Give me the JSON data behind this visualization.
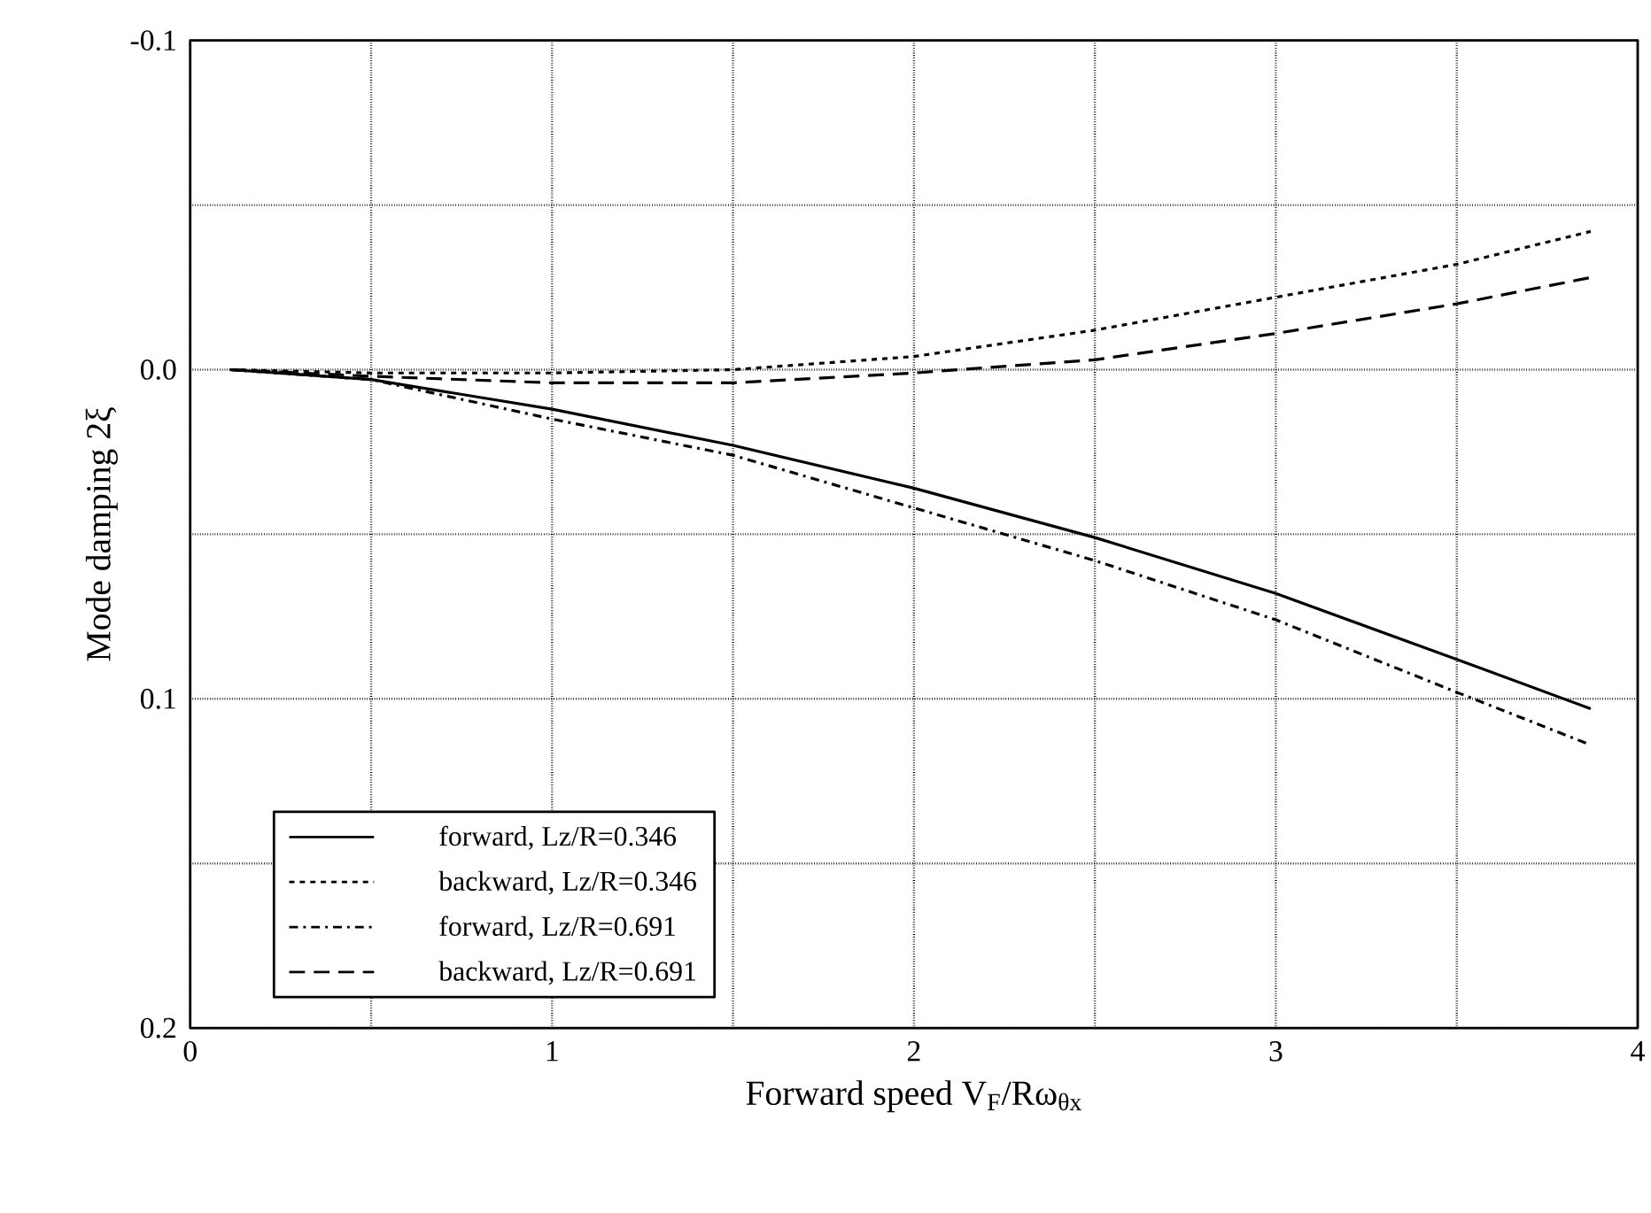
{
  "chart_data": {
    "type": "line",
    "xlabel": "Forward speed    V$_{F}$/Rω$_{θx}$",
    "ylabel": "Mode damping   2ξ",
    "x": [
      0.11,
      0.5,
      1,
      1.5,
      2,
      2.5,
      3,
      3.5,
      3.87
    ],
    "series": [
      {
        "name": "forward, Lz/R=0.346",
        "color": "#000000",
        "line_style": "solid",
        "values": [
          0,
          0.003,
          0.012,
          0.023,
          0.036,
          0.051,
          0.068,
          0.088,
          0.103
        ]
      },
      {
        "name": "backward, Lz/R=0.346",
        "color": "#000000",
        "line_style": "dotted",
        "values": [
          0,
          0.001,
          0.001,
          0,
          -0.004,
          -0.012,
          -0.022,
          -0.032,
          -0.042
        ]
      },
      {
        "name": "forward, Lz/R=0.691",
        "color": "#000000",
        "line_style": "dashdot",
        "values": [
          0,
          0.003,
          0.015,
          0.026,
          0.042,
          0.058,
          0.076,
          0.098,
          0.114
        ]
      },
      {
        "name": "backward, Lz/R=0.691",
        "color": "#000000",
        "line_style": "dashed",
        "values": [
          0,
          0.002,
          0.004,
          0.004,
          0.001,
          -0.003,
          -0.011,
          -0.02,
          -0.028
        ]
      }
    ],
    "xlim": [
      0,
      4
    ],
    "xticks": [
      0,
      {
        "value": 0.5,
        "label": null
      },
      1,
      {
        "value": 1.5,
        "label": null
      },
      2,
      {
        "value": 2.5,
        "label": null
      },
      3,
      {
        "value": 3.5,
        "label": null
      },
      4
    ],
    "ylim": [
      0.2,
      -0.1
    ],
    "yticks": [
      {
        "value": -0.1,
        "label": "-0.1"
      },
      {
        "value": -0.05,
        "label": null
      },
      {
        "value": 0,
        "label": "0.0"
      },
      {
        "value": 0.05,
        "label": null
      },
      {
        "value": 0.1,
        "label": "0.1"
      },
      {
        "value": 0.15,
        "label": null
      },
      {
        "value": 0.2,
        "label": "0.2"
      }
    ],
    "grid": true,
    "legend": "bottom left",
    "marker": "none"
  }
}
